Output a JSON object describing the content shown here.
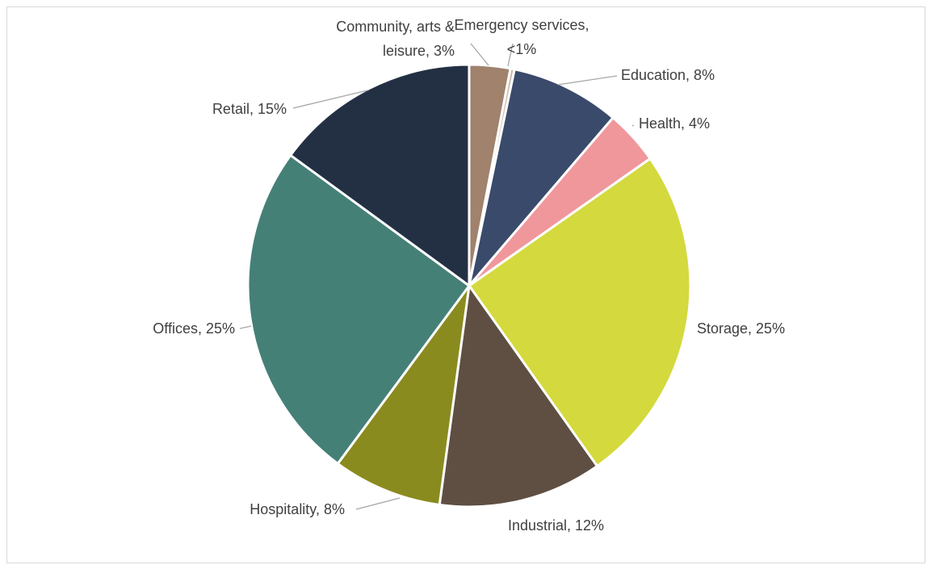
{
  "chart_data": {
    "type": "pie",
    "title": "",
    "start_angle_deg": 0,
    "direction": "clockwise",
    "legend": "none",
    "slices": [
      {
        "category": "Community, arts & leisure",
        "value": 3,
        "label_lines": [
          "Community, arts &",
          "leisure, 3%"
        ],
        "color": "#a0826d"
      },
      {
        "category": "Emergency services",
        "value": 0.3,
        "label_lines": [
          "Emergency services,",
          "<1%"
        ],
        "color": "#c9b8a8"
      },
      {
        "category": "Education",
        "value": 8,
        "label_lines": [
          "Education, 8%"
        ],
        "color": "#3a4a6b"
      },
      {
        "category": "Health",
        "value": 4,
        "label_lines": [
          "Health, 4%"
        ],
        "color": "#f0979c"
      },
      {
        "category": "Storage",
        "value": 25,
        "label_lines": [
          "Storage, 25%"
        ],
        "color": "#d4d93e"
      },
      {
        "category": "Industrial",
        "value": 12,
        "label_lines": [
          "Industrial, 12%"
        ],
        "color": "#5f4f42"
      },
      {
        "category": "Hospitality",
        "value": 8,
        "label_lines": [
          "Hospitality, 8%"
        ],
        "color": "#8a8b1e"
      },
      {
        "category": "Offices",
        "value": 25,
        "label_lines": [
          "Offices, 25%"
        ],
        "color": "#458077"
      },
      {
        "category": "Retail",
        "value": 15,
        "label_lines": [
          "Retail, 15%"
        ],
        "color": "#233044"
      }
    ]
  }
}
